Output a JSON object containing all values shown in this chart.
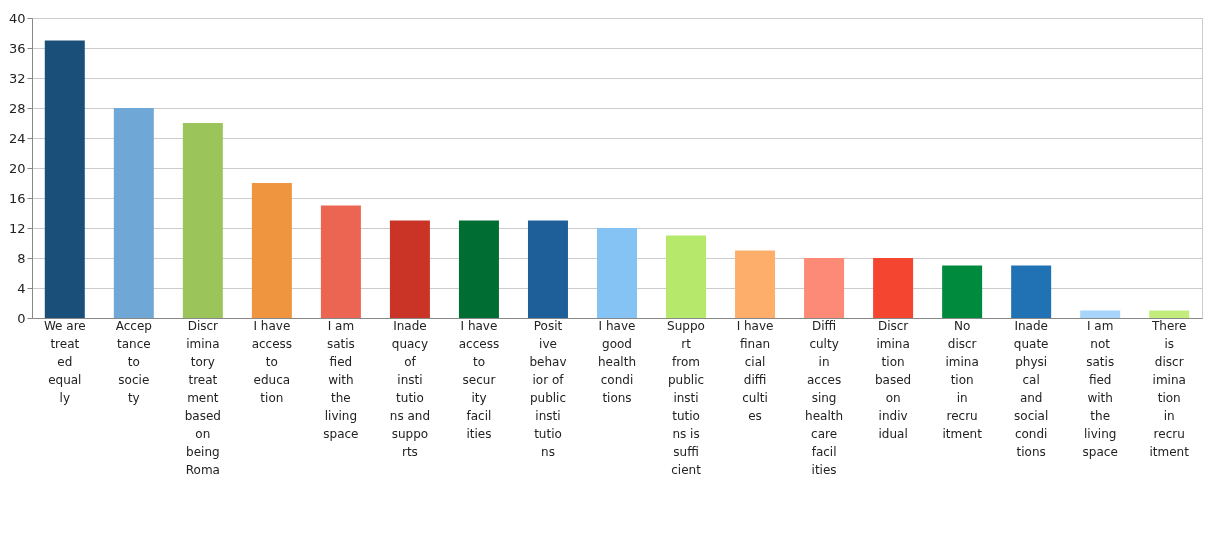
{
  "chart_data": {
    "type": "bar",
    "categories": [
      "We are treated equally",
      "Acceptance to society",
      "Discriminatory treatment based on being Roma",
      "I have access to education",
      "I am satisfied with the living space",
      "Inadequacy of institutions and supports",
      "I have access to security facilities",
      "Positive behavior of public institutions",
      "I have good health conditions",
      "Support from public institutions is sufficient",
      "I have financial difficulties",
      "Difficulty in accessing health care facilities",
      "Discrimination based on individual",
      "No discrimination in recruitment",
      "Inadequate physical and social conditions",
      "I am not satisfied with the living space",
      "There is discrimination in recruitment"
    ],
    "values": [
      37,
      28,
      26,
      18,
      15,
      13,
      13,
      13,
      12,
      11,
      9,
      8,
      8,
      7,
      7,
      1,
      1
    ],
    "colors": [
      "#1a4f7a",
      "#6fa8d6",
      "#9bc45a",
      "#f0953f",
      "#ec6553",
      "#c93426",
      "#006d33",
      "#1f5f99",
      "#85c3f5",
      "#b5e86b",
      "#fdae6b",
      "#fc8a76",
      "#f44530",
      "#008a3e",
      "#2171b5",
      "#a6d4fa",
      "#c2ec7c"
    ],
    "ylim": [
      0,
      40
    ],
    "yticks": [
      0,
      4,
      8,
      12,
      16,
      20,
      24,
      28,
      32,
      36,
      40
    ],
    "grid": "y"
  }
}
